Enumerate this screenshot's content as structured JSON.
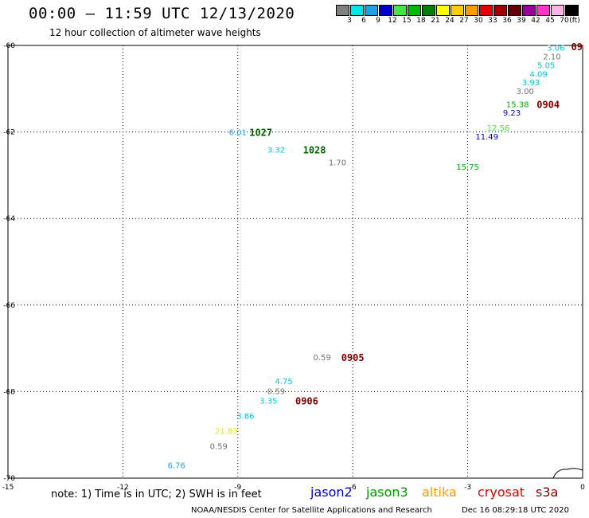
{
  "header": {
    "title": "00:00 – 11:59 UTC 12/13/2020",
    "subtitle": "12 hour collection of altimeter wave heights",
    "colorbar_unit": "(ft)",
    "colorbar": [
      {
        "label": "3",
        "color": "#808080"
      },
      {
        "label": "6",
        "color": "#00e5e5"
      },
      {
        "label": "9",
        "color": "#1ea0e6"
      },
      {
        "label": "12",
        "color": "#0000cc"
      },
      {
        "label": "15",
        "color": "#44e644"
      },
      {
        "label": "18",
        "color": "#00b800"
      },
      {
        "label": "21",
        "color": "#008000"
      },
      {
        "label": "24",
        "color": "#ffff00"
      },
      {
        "label": "27",
        "color": "#ffcc00"
      },
      {
        "label": "30",
        "color": "#ff9900"
      },
      {
        "label": "33",
        "color": "#e60000"
      },
      {
        "label": "36",
        "color": "#a00000"
      },
      {
        "label": "39",
        "color": "#660000"
      },
      {
        "label": "42",
        "color": "#990099"
      },
      {
        "label": "45",
        "color": "#ff33cc"
      },
      {
        "label": "70",
        "color": "#ffb3e6"
      },
      {
        "label": "",
        "color": "#000000"
      }
    ]
  },
  "chart_data": {
    "type": "scatter",
    "title": "00:00 – 11:59 UTC 12/13/2020",
    "xlim": [
      -15,
      0
    ],
    "ylim": [
      -70,
      -60
    ],
    "x_ticks": [
      "-15",
      "-12",
      "-9",
      "-6",
      "-3",
      "0"
    ],
    "y_ticks": [
      "-60",
      "-62",
      "-64",
      "-66",
      "-68",
      "-70"
    ],
    "x_tick_values": [
      -15,
      -12,
      -9,
      -6,
      -3,
      0
    ],
    "y_tick_values": [
      -60,
      -62,
      -64,
      -66,
      -68,
      -70
    ],
    "grid": true,
    "points": [
      {
        "x": -0.7,
        "y": -60.05,
        "label": "3.06",
        "color": "#00c8d8"
      },
      {
        "x": -0.8,
        "y": -60.25,
        "label": "2.10",
        "color": "#707070"
      },
      {
        "x": -0.95,
        "y": -60.45,
        "label": "5.05",
        "color": "#00c8d8"
      },
      {
        "x": -1.15,
        "y": -60.65,
        "label": "4.09",
        "color": "#00c8d8"
      },
      {
        "x": -1.35,
        "y": -60.85,
        "label": "3.93",
        "color": "#00c8d8"
      },
      {
        "x": -1.5,
        "y": -61.05,
        "label": "3.00",
        "color": "#707070"
      },
      {
        "x": -1.7,
        "y": -61.35,
        "label": "15.38",
        "color": "#00b000"
      },
      {
        "x": -1.85,
        "y": -61.55,
        "label": "9.23",
        "color": "#0000cc"
      },
      {
        "x": -2.2,
        "y": -61.9,
        "label": "12.56",
        "color": "#44e644"
      },
      {
        "x": -2.5,
        "y": -62.1,
        "label": "11.49",
        "color": "#0000cc"
      },
      {
        "x": -3.0,
        "y": -62.8,
        "label": "15.75",
        "color": "#00b000"
      },
      {
        "x": -9.0,
        "y": -62.0,
        "label": "6.01",
        "color": "#1ea0e6"
      },
      {
        "x": -8.0,
        "y": -62.4,
        "label": "3.32",
        "color": "#00c8d8"
      },
      {
        "x": -6.4,
        "y": -62.7,
        "label": "1.70",
        "color": "#707070"
      },
      {
        "x": -6.8,
        "y": -67.2,
        "label": "0.59",
        "color": "#707070"
      },
      {
        "x": -7.8,
        "y": -67.75,
        "label": "4.75",
        "color": "#00c8d8"
      },
      {
        "x": -8.0,
        "y": -67.98,
        "label": "0.59",
        "color": "#707070"
      },
      {
        "x": -8.2,
        "y": -68.2,
        "label": "3.35",
        "color": "#00c8d8"
      },
      {
        "x": -8.8,
        "y": -68.55,
        "label": "3.86",
        "color": "#00c8d8"
      },
      {
        "x": -9.3,
        "y": -68.9,
        "label": "21.83",
        "color": "#e6e600"
      },
      {
        "x": -9.5,
        "y": -69.25,
        "label": "0.59",
        "color": "#707070"
      },
      {
        "x": -10.6,
        "y": -69.7,
        "label": "6.76",
        "color": "#1ea0e6"
      }
    ],
    "time_labels": [
      {
        "x": -0.15,
        "y": -60.02,
        "label": "09",
        "color": "#800000"
      },
      {
        "x": -0.9,
        "y": -61.35,
        "label": "0904",
        "color": "#800000"
      },
      {
        "x": -8.4,
        "y": -62.0,
        "label": "1027",
        "color": "#006400"
      },
      {
        "x": -7.0,
        "y": -62.4,
        "label": "1028",
        "color": "#006400"
      },
      {
        "x": -6.0,
        "y": -67.2,
        "label": "0905",
        "color": "#800000"
      },
      {
        "x": -7.2,
        "y": -68.2,
        "label": "0906",
        "color": "#800000"
      }
    ]
  },
  "footer": {
    "note": "note: 1) Time is in UTC; 2) SWH is in feet",
    "legend": [
      {
        "name": "jason2",
        "color": "#0000cc"
      },
      {
        "name": "jason3",
        "color": "#009900"
      },
      {
        "name": "altika",
        "color": "#ff9900"
      },
      {
        "name": "cryosat",
        "color": "#e60000"
      },
      {
        "name": "s3a",
        "color": "#800000"
      }
    ],
    "credit": "NOAA/NESDIS Center for Satellite Applications and Research",
    "timestamp": "Dec 16 08:29:18 UTC 2020"
  }
}
